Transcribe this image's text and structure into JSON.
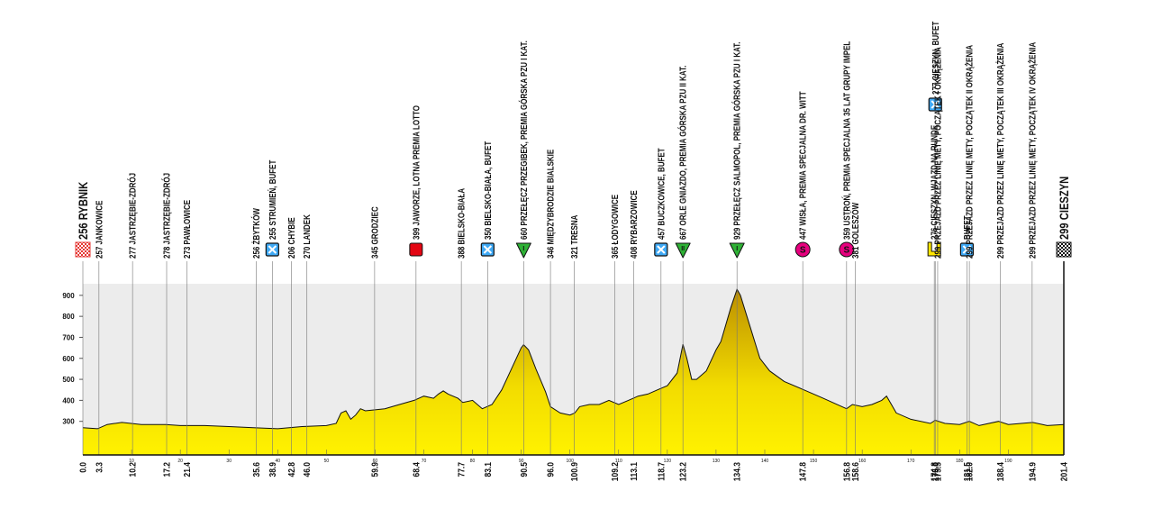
{
  "chart_data": {
    "type": "area",
    "color": "#f2dc00",
    "xlim": [
      0,
      201.4
    ],
    "ylim": [
      140,
      955
    ],
    "yticks": [
      300,
      400,
      500,
      600,
      700,
      800,
      900
    ],
    "xticks": [
      10,
      20,
      30,
      40,
      50,
      60,
      70,
      80,
      90,
      100,
      110,
      120,
      130,
      140,
      150,
      160,
      170,
      180,
      190
    ],
    "x": [
      0,
      3,
      5,
      8,
      12,
      17,
      20,
      25,
      30,
      35,
      40,
      45,
      50,
      52,
      53,
      54,
      55,
      56,
      57,
      58,
      62,
      65,
      68,
      70,
      72,
      73,
      74,
      75,
      77,
      78,
      80,
      82,
      84,
      86,
      88,
      90,
      90.5,
      91.5,
      93,
      95,
      96,
      98,
      100,
      101,
      102,
      104,
      106,
      108,
      110,
      112,
      114,
      116,
      118,
      120,
      122,
      123.2,
      124,
      125,
      126,
      128,
      130,
      131,
      133,
      134.3,
      135,
      137,
      139,
      141,
      144,
      148,
      152,
      156.8,
      158,
      160,
      162,
      164,
      165,
      166,
      167,
      170,
      174,
      175,
      177,
      180,
      182,
      184,
      188,
      190,
      195,
      198,
      201.4
    ],
    "values": [
      270,
      265,
      285,
      295,
      285,
      285,
      280,
      280,
      275,
      270,
      265,
      275,
      280,
      290,
      340,
      350,
      310,
      330,
      360,
      350,
      360,
      380,
      400,
      420,
      410,
      430,
      445,
      430,
      410,
      390,
      400,
      360,
      380,
      450,
      550,
      650,
      665,
      640,
      550,
      440,
      370,
      340,
      330,
      340,
      370,
      380,
      380,
      400,
      380,
      400,
      420,
      430,
      450,
      470,
      530,
      667,
      600,
      500,
      500,
      540,
      640,
      680,
      840,
      929,
      900,
      750,
      600,
      540,
      490,
      450,
      410,
      360,
      380,
      370,
      380,
      400,
      420,
      380,
      340,
      310,
      290,
      305,
      290,
      285,
      300,
      280,
      300,
      285,
      295,
      280,
      285
    ],
    "waypoints": [
      {
        "km": 0,
        "km_label": "0.0",
        "label": "256 RYBNIK",
        "icon": "start"
      },
      {
        "km": 3.3,
        "km_label": "3.3",
        "label": "257 JANKOWICE"
      },
      {
        "km": 10.2,
        "km_label": "10.2",
        "label": "277 JASTRZĘBIE-ZDRÓJ"
      },
      {
        "km": 17.2,
        "km_label": "17.2",
        "label": "278 JASTRZĘBIE-ZDRÓJ"
      },
      {
        "km": 21.4,
        "km_label": "21.4",
        "label": "273 PAWŁOWICE"
      },
      {
        "km": 35.6,
        "km_label": "35.6",
        "label": "256 ŻBYTKÓW"
      },
      {
        "km": 38.9,
        "km_label": "38.9",
        "label": "255 STRUMIEŃ, BUFET",
        "icon": "feed"
      },
      {
        "km": 42.8,
        "km_label": "42.8",
        "label": "206 CHYBIE"
      },
      {
        "km": 46,
        "km_label": "46.0",
        "label": "270 LANDEK"
      },
      {
        "km": 59.9,
        "km_label": "59.9",
        "label": "345 GRODZIEC"
      },
      {
        "km": 68.4,
        "km_label": "68.4",
        "label": "399 JAWORZE, LOTNA PREMIA LOTTO",
        "icon": "sprint"
      },
      {
        "km": 77.7,
        "km_label": "77.7",
        "label": "388 BIELSKO-BIAŁA"
      },
      {
        "km": 83.1,
        "km_label": "83.1",
        "label": "350 BIELSKO-BIAŁA, BUFET",
        "icon": "feed"
      },
      {
        "km": 90.5,
        "km_label": "90.5",
        "label": "660 PRZEŁĘCZ PRZEGIBEK, PREMIA GÓRSKA PZU I KAT.",
        "icon": "kom",
        "icon_label": "I"
      },
      {
        "km": 96,
        "km_label": "96.0",
        "label": "346 MIĘDZYBRODZIE BIALSKIE"
      },
      {
        "km": 100.9,
        "km_label": "100.9",
        "label": "321 TRESNA"
      },
      {
        "km": 109.2,
        "km_label": "109.2",
        "label": "365 ŁODYGOWICE"
      },
      {
        "km": 113.1,
        "km_label": "113.1",
        "label": "408 RYBARZOWICE"
      },
      {
        "km": 118.7,
        "km_label": "118.7",
        "label": "457 BUCZKOWICE, BUFET",
        "icon": "feed"
      },
      {
        "km": 123.2,
        "km_label": "123.2",
        "label": "667 ORLE GNIAZDO, PREMIA GÓRSKA PZU II KAT.",
        "icon": "kom",
        "icon_label": "II"
      },
      {
        "km": 134.3,
        "km_label": "134.3",
        "label": "929 PRZEŁĘCZ SALMOPOL, PREMIA GÓRSKA PZU I KAT.",
        "icon": "kom",
        "icon_label": "I"
      },
      {
        "km": 147.8,
        "km_label": "147.8",
        "label": "447 WISŁA, PREMIA SPECJALNA DR. WITT",
        "icon": "special",
        "icon_label": "S"
      },
      {
        "km": 156.8,
        "km_label": "156.8",
        "label": "359 USTROŃ, PREMIA SPECJALNA 35 LAT GRUPY IMPEL",
        "icon": "special",
        "icon_label": "S"
      },
      {
        "km": 158.6,
        "km_label": "158.6",
        "label": "381 GOLESZÓW"
      },
      {
        "km": 174.8,
        "km_label": "174.8",
        "label": "276 CIESZYN, WJAZD NA RUNDĘ",
        "icon": "lap"
      },
      {
        "km": 175,
        "km_label": "175.0",
        "label": "277 CIESZYN, BUFET",
        "icon": "feed"
      },
      {
        "km": 175.5,
        "km_label": "175.5",
        "label": "299 PRZEJAZD PRZEZ LINIĘ METY, POCZĄTEK I OKRĄŻENIA"
      },
      {
        "km": 181.5,
        "km_label": "181.5",
        "label": "BUFET",
        "icon": "feed"
      },
      {
        "km": 182,
        "km_label": "182.0",
        "label": "299 PRZEJAZD PRZEZ LINIĘ METY, POCZĄTEK II OKRĄŻENIA"
      },
      {
        "km": 188.4,
        "km_label": "188.4",
        "label": "299 PRZEJAZD PRZEZ LINIĘ METY, POCZĄTEK III OKRĄŻENIA"
      },
      {
        "km": 194.9,
        "km_label": "194.9",
        "label": "299 PRZEJAZD PRZEZ LINIĘ METY, POCZĄTEK IV OKRĄŻENIA"
      },
      {
        "km": 201.4,
        "km_label": "201.4",
        "label": "299 CIESZYN",
        "icon": "finish"
      }
    ]
  }
}
